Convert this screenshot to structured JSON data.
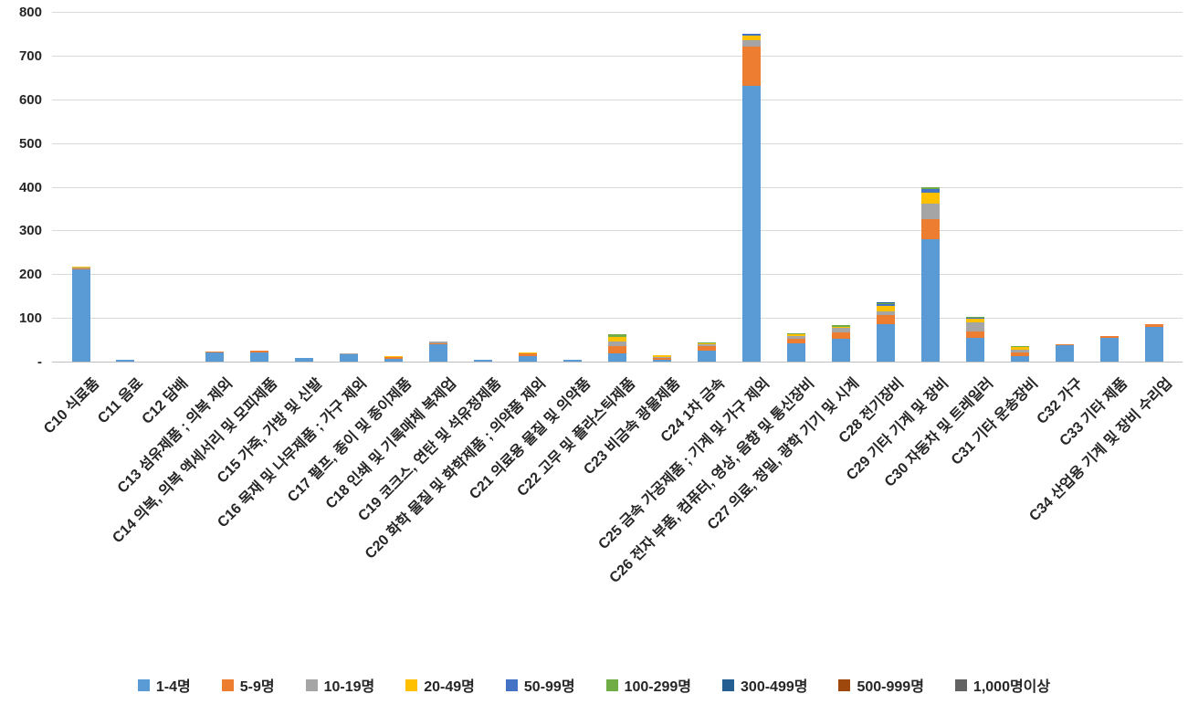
{
  "chart_data": {
    "type": "bar",
    "subtype": "stacked-vertical",
    "title": "",
    "xlabel": "",
    "ylabel": "",
    "grid": true,
    "legend_position": "bottom",
    "y_axis": {
      "min": 0,
      "max": 800,
      "step": 100,
      "tick_labels": [
        "-",
        "100",
        "200",
        "300",
        "400",
        "500",
        "600",
        "700",
        "800"
      ]
    },
    "categories": [
      "C10 식료품",
      "C11 음료",
      "C12 담배",
      "C13 섬유제품 ; 의복 제외",
      "C14 의복, 의복 액세서리 및 모피제품",
      "C15 가죽, 가방 및 신발",
      "C16 목재 및 나무제품 ; 가구 제외",
      "C17 펄프, 종이 및 종이제품",
      "C18 인쇄 및 기록매체 복제업",
      "C19 코크스, 연탄 및 석유정제품",
      "C20 화학 물질 및 화학제품 ; 의약품 제외",
      "C21 의료용 물질 및 의약품",
      "C22 고무 및 플라스틱제품",
      "C23 비금속 광물제품",
      "C24 1차 금속",
      "C25 금속 가공제품 ; 기계 및 가구 제외",
      "C26 전자 부품, 컴퓨터, 영상, 음향 및 통신장비",
      "C27 의료, 정밀, 광학 기기 및 시계",
      "C28 전기장비",
      "C29 기타 기계 및 장비",
      "C30 자동차 및 트레일러",
      "C31 기타 운송장비",
      "C32 가구",
      "C33 기타 제품",
      "C34 산업용 기계 및 장비 수리업"
    ],
    "series": [
      {
        "name": "1-4명",
        "color": "#5B9BD5",
        "values": [
          210,
          4,
          0,
          21,
          21,
          8,
          16,
          7,
          39,
          5,
          13,
          4,
          18,
          5,
          26,
          630,
          42,
          52,
          86,
          280,
          55,
          13,
          37,
          55,
          79
        ]
      },
      {
        "name": "5-9명",
        "color": "#ED7D31",
        "values": [
          3,
          0,
          0,
          1,
          5,
          1,
          0,
          4,
          2,
          0,
          6,
          0,
          18,
          4,
          9,
          90,
          10,
          15,
          20,
          45,
          14,
          7,
          2,
          4,
          6
        ]
      },
      {
        "name": "10-19명",
        "color": "#A5A5A5",
        "values": [
          2,
          0,
          0,
          0,
          0,
          0,
          2,
          0,
          6,
          0,
          0,
          0,
          11,
          2,
          5,
          16,
          6,
          10,
          8,
          36,
          20,
          7,
          0,
          0,
          0
        ]
      },
      {
        "name": "20-49명",
        "color": "#FFC000",
        "values": [
          3,
          0,
          0,
          0,
          0,
          0,
          0,
          2,
          0,
          0,
          3,
          0,
          10,
          3,
          2,
          9,
          4,
          3,
          14,
          25,
          9,
          7,
          0,
          0,
          0
        ]
      },
      {
        "name": "50-99명",
        "color": "#4472C4",
        "values": [
          0,
          0,
          0,
          0,
          0,
          0,
          0,
          0,
          0,
          0,
          0,
          0,
          0,
          0,
          0,
          5,
          0,
          0,
          4,
          8,
          2,
          0,
          0,
          0,
          0
        ]
      },
      {
        "name": "100-299명",
        "color": "#70AD47",
        "values": [
          0,
          1,
          0,
          0,
          0,
          0,
          0,
          0,
          0,
          0,
          0,
          0,
          6,
          0,
          2,
          0,
          3,
          3,
          2,
          4,
          2,
          2,
          0,
          0,
          0
        ]
      },
      {
        "name": "300-499명",
        "color": "#255E91",
        "values": [
          0,
          0,
          0,
          0,
          0,
          0,
          0,
          0,
          0,
          0,
          0,
          0,
          0,
          0,
          0,
          0,
          0,
          0,
          2,
          0,
          0,
          0,
          0,
          0,
          0
        ]
      },
      {
        "name": "500-999명",
        "color": "#9E480E",
        "values": [
          0,
          0,
          0,
          0,
          0,
          0,
          0,
          0,
          0,
          0,
          0,
          0,
          0,
          0,
          0,
          0,
          0,
          0,
          0,
          0,
          0,
          0,
          0,
          0,
          0
        ]
      },
      {
        "name": "1,000명이상",
        "color": "#636363",
        "values": [
          0,
          0,
          0,
          0,
          0,
          0,
          0,
          0,
          0,
          0,
          0,
          0,
          0,
          0,
          0,
          0,
          0,
          0,
          0,
          0,
          0,
          0,
          0,
          0,
          0
        ]
      }
    ],
    "style": {
      "gridline_color": "#D9D9D9",
      "axis_line_color": "#BFBFBF",
      "label_color": "#262626",
      "background": "#FFFFFF"
    }
  }
}
